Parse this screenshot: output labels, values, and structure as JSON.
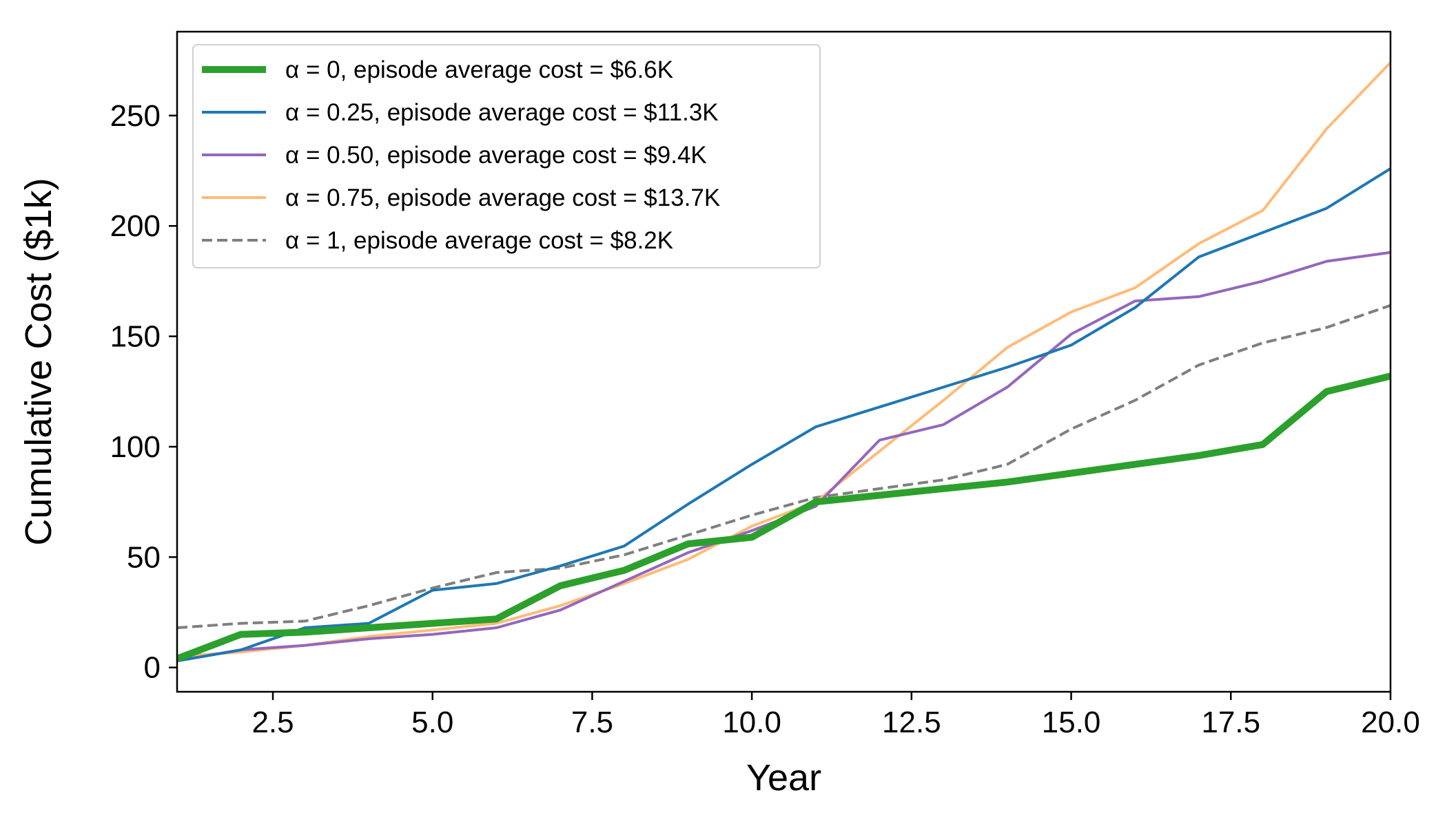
{
  "chart_data": {
    "type": "line",
    "title": "",
    "xlabel": "Year",
    "ylabel": "Cumulative Cost ($1k)",
    "xlim": [
      1,
      20
    ],
    "ylim": [
      -11,
      288
    ],
    "xticks": [
      2.5,
      5.0,
      7.5,
      10.0,
      12.5,
      15.0,
      17.5,
      20.0
    ],
    "xtick_labels": [
      "2.5",
      "5.0",
      "7.5",
      "10.0",
      "12.5",
      "15.0",
      "17.5",
      "20.0"
    ],
    "yticks": [
      0,
      50,
      100,
      150,
      200,
      250
    ],
    "ytick_labels": [
      "0",
      "50",
      "100",
      "150",
      "200",
      "250"
    ],
    "grid": false,
    "legend_position": "top-left",
    "x": [
      1,
      2,
      3,
      4,
      5,
      6,
      7,
      8,
      9,
      10,
      11,
      12,
      13,
      14,
      15,
      16,
      17,
      18,
      19,
      20
    ],
    "series": [
      {
        "name": "α = 0, episode average cost = $6.6K",
        "color": "#2ca02c",
        "style": "solid",
        "weight": "thick",
        "values": [
          4,
          15,
          16,
          18,
          20,
          22,
          37,
          44,
          56,
          59,
          75,
          78,
          81,
          84,
          88,
          92,
          96,
          101,
          125,
          132
        ]
      },
      {
        "name": "α = 0.25, episode average cost = $11.3K",
        "color": "#1f77b4",
        "style": "solid",
        "weight": "normal",
        "values": [
          3,
          8,
          18,
          20,
          35,
          38,
          46,
          55,
          74,
          92,
          109,
          118,
          127,
          136,
          146,
          163,
          186,
          197,
          208,
          226
        ]
      },
      {
        "name": "α = 0.50, episode average cost = $9.4K",
        "color": "#9467bd",
        "style": "solid",
        "weight": "normal",
        "values": [
          3,
          8,
          10,
          13,
          15,
          18,
          26,
          39,
          52,
          62,
          73,
          103,
          110,
          127,
          151,
          166,
          168,
          175,
          184,
          188
        ]
      },
      {
        "name": "α = 0.75, episode average cost = $13.7K",
        "color": "#ffbb78",
        "style": "solid",
        "weight": "normal",
        "values": [
          5,
          7,
          10,
          14,
          17,
          20,
          28,
          38,
          49,
          64,
          75,
          98,
          121,
          145,
          161,
          172,
          192,
          207,
          244,
          274
        ]
      },
      {
        "name": "α = 1, episode average cost = $8.2K",
        "color": "#7f7f7f",
        "style": "dashed",
        "weight": "normal",
        "values": [
          18,
          20,
          21,
          28,
          36,
          43,
          45,
          51,
          60,
          69,
          77,
          81,
          85,
          92,
          108,
          121,
          137,
          147,
          154,
          164
        ]
      }
    ]
  }
}
